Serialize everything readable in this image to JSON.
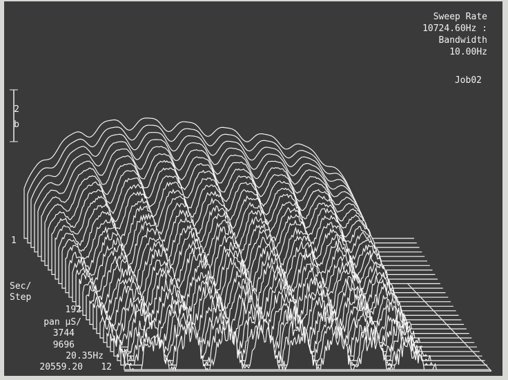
{
  "header": {
    "lines": [
      "Sweep Rate",
      "10724.60Hz :",
      "Bandwidth",
      "10.00Hz"
    ],
    "job": "Job02"
  },
  "scale": {
    "marks": [
      "2",
      "b"
    ],
    "level": "1"
  },
  "readout": {
    "lines": [
      "Sec/",
      "Step",
      "192",
      "pan µS/",
      "3744",
      "9696",
      "20.35Hz",
      "20559.20"
    ],
    "index": "12"
  }
}
